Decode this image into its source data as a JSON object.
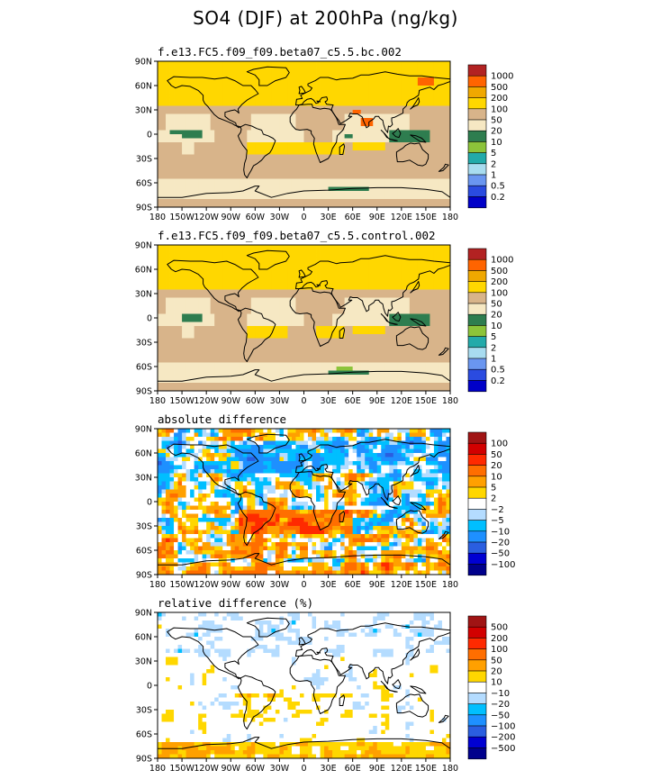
{
  "title": "SO4 (DJF) at 200hPa (ng/kg)",
  "colors": {
    "cb1": [
      "#0000c8",
      "#2a4be0",
      "#6a96f0",
      "#a8dcf0",
      "#22aaaa",
      "#8cc43a",
      "#2e7d4f",
      "#f6e8c3",
      "#d8b48a",
      "#ffd700",
      "#f0a800",
      "#ff6400",
      "#b22222"
    ],
    "cb3": [
      "#00008c",
      "#0000d2",
      "#2a5ee0",
      "#1e90ff",
      "#00bfff",
      "#b4dcff",
      "#ffffff",
      "#ffd700",
      "#ffa000",
      "#ff6e00",
      "#ff2a00",
      "#d20000",
      "#a01414"
    ],
    "land_fill": "#d8b48a",
    "coast": "#000000"
  },
  "axes": {
    "y_ticks": [
      "90N",
      "60N",
      "30N",
      "0",
      "30S",
      "60S",
      "90S"
    ],
    "x_ticks": [
      "180",
      "150W",
      "120W",
      "90W",
      "60W",
      "30W",
      "0",
      "30E",
      "60E",
      "90E",
      "120E",
      "150E",
      "180"
    ]
  },
  "chart_data": [
    {
      "type": "heatmap",
      "title": "f.e13.FC5.f09_f09.beta07_c5.5.bc.002",
      "colorbar_labels": [
        "1000",
        "500",
        "200",
        "100",
        "50",
        "20",
        "10",
        "5",
        "2",
        "1",
        "0.5",
        "0.2"
      ],
      "palette": "cb1",
      "variant": "bc"
    },
    {
      "type": "heatmap",
      "title": "f.e13.FC5.f09_f09.beta07_c5.5.control.002",
      "colorbar_labels": [
        "1000",
        "500",
        "200",
        "100",
        "50",
        "20",
        "10",
        "5",
        "2",
        "1",
        "0.5",
        "0.2"
      ],
      "palette": "cb1",
      "variant": "control"
    },
    {
      "type": "heatmap",
      "title": "absolute difference",
      "colorbar_labels": [
        "100",
        "50",
        "20",
        "10",
        "5",
        "2",
        "−2",
        "−5",
        "−10",
        "−20",
        "−50",
        "−100"
      ],
      "palette": "cb3",
      "variant": "absdiff"
    },
    {
      "type": "heatmap",
      "title": "relative difference (%)",
      "colorbar_labels": [
        "500",
        "200",
        "100",
        "50",
        "20",
        "10",
        "−10",
        "−20",
        "−50",
        "−100",
        "−200",
        "−500"
      ],
      "palette": "cb3",
      "variant": "reldiff"
    }
  ]
}
